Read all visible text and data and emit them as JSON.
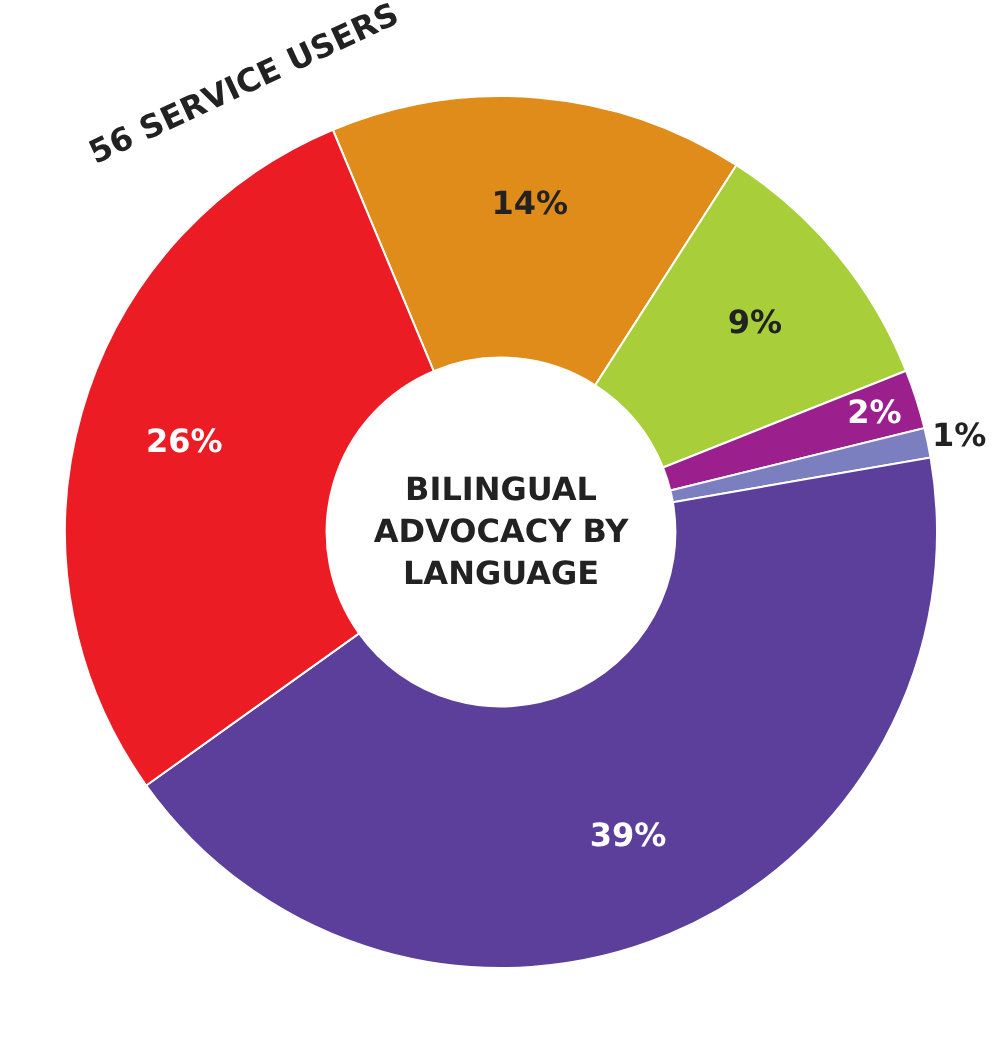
{
  "chart_data": {
    "type": "donut",
    "title": "BILINGUAL ADVOCACY BY LANGUAGE",
    "annotations": [
      "56 SERVICE USERS"
    ],
    "categories": [
      null,
      null,
      null,
      null,
      null,
      null
    ],
    "values": [
      14,
      9,
      2,
      1,
      39,
      26
    ],
    "value_labels": [
      "14%",
      "9%",
      "2%",
      "1%",
      "39%",
      "26%"
    ],
    "colors": [
      "#e08c1a",
      "#a8cf3a",
      "#9b1f8c",
      "#7b7fc0",
      "#5b3f9b",
      "#ec1c24"
    ]
  }
}
